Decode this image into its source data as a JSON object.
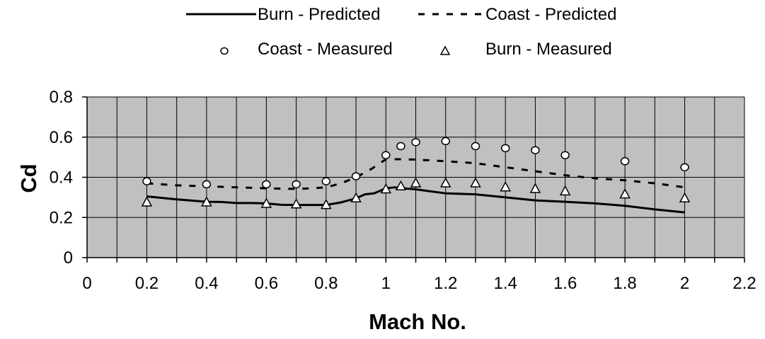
{
  "chart_data": {
    "type": "line",
    "xlabel": "Mach No.",
    "ylabel": "Cd",
    "xlim": [
      0,
      2.2
    ],
    "ylim": [
      0,
      0.8
    ],
    "x_ticks": [
      "0",
      "0.2",
      "0.4",
      "0.6",
      "0.8",
      "1",
      "1.2",
      "1.4",
      "1.6",
      "1.8",
      "2",
      "2.2"
    ],
    "y_ticks": [
      "0",
      "0.2",
      "0.4",
      "0.6",
      "0.8"
    ],
    "grid": true,
    "plot_background": "#c0c0c0",
    "legend_position": "top",
    "series": [
      {
        "name": "Burn - Predicted",
        "style": "solid-line",
        "color": "#000000",
        "x": [
          0.2,
          0.3,
          0.4,
          0.45,
          0.5,
          0.55,
          0.6,
          0.65,
          0.7,
          0.75,
          0.8,
          0.85,
          0.9,
          0.93,
          0.96,
          1.0,
          1.03,
          1.06,
          1.1,
          1.15,
          1.2,
          1.3,
          1.4,
          1.5,
          1.6,
          1.7,
          1.8,
          1.9,
          2.0
        ],
        "y": [
          0.305,
          0.29,
          0.278,
          0.277,
          0.272,
          0.272,
          0.27,
          0.263,
          0.262,
          0.262,
          0.262,
          0.275,
          0.295,
          0.315,
          0.32,
          0.345,
          0.35,
          0.345,
          0.34,
          0.33,
          0.32,
          0.315,
          0.3,
          0.285,
          0.278,
          0.27,
          0.258,
          0.24,
          0.225
        ]
      },
      {
        "name": "Coast - Predicted",
        "style": "dashed-line",
        "color": "#000000",
        "x": [
          0.2,
          0.3,
          0.4,
          0.5,
          0.6,
          0.7,
          0.75,
          0.8,
          0.85,
          0.9,
          0.95,
          1.0,
          1.05,
          1.1,
          1.2,
          1.3,
          1.4,
          1.5,
          1.6,
          1.7,
          1.8,
          1.9,
          2.0
        ],
        "y": [
          0.37,
          0.36,
          0.355,
          0.35,
          0.345,
          0.342,
          0.345,
          0.35,
          0.37,
          0.4,
          0.44,
          0.49,
          0.49,
          0.488,
          0.48,
          0.47,
          0.45,
          0.43,
          0.41,
          0.395,
          0.385,
          0.37,
          0.35
        ]
      },
      {
        "name": "Coast - Measured",
        "style": "circle-marker",
        "color": "#ffffff",
        "x": [
          0.2,
          0.4,
          0.6,
          0.7,
          0.8,
          0.9,
          1.0,
          1.05,
          1.1,
          1.2,
          1.3,
          1.4,
          1.5,
          1.6,
          1.8,
          2.0
        ],
        "y": [
          0.38,
          0.365,
          0.365,
          0.365,
          0.38,
          0.405,
          0.51,
          0.555,
          0.575,
          0.58,
          0.555,
          0.545,
          0.535,
          0.51,
          0.48,
          0.45
        ]
      },
      {
        "name": "Burn - Measured",
        "style": "triangle-marker",
        "color": "#ffffff",
        "x": [
          0.2,
          0.4,
          0.6,
          0.7,
          0.8,
          0.9,
          1.0,
          1.05,
          1.1,
          1.2,
          1.3,
          1.4,
          1.5,
          1.6,
          1.8,
          2.0
        ],
        "y": [
          0.275,
          0.275,
          0.268,
          0.265,
          0.262,
          0.295,
          0.34,
          0.355,
          0.37,
          0.37,
          0.37,
          0.35,
          0.342,
          0.33,
          0.315,
          0.295
        ]
      }
    ]
  }
}
